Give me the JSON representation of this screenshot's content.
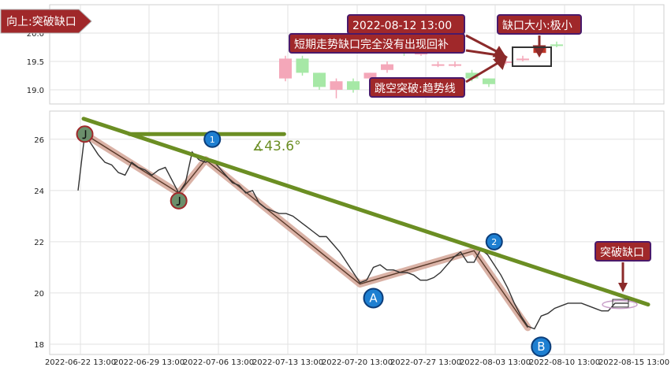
{
  "chart_data": {
    "type": "line",
    "x_tick_labels": [
      "2022-06-22 13:00",
      "2022-06-29 13:00",
      "2022-07-06 13:00",
      "2022-07-13 13:00",
      "2022-07-20 13:00",
      "2022-07-27 13:00",
      "2022-08-03 13:00",
      "2022-08-10 13:00",
      "2022-08-15 13:00"
    ],
    "top_panel": {
      "type": "candlestick",
      "y_ticks": [
        "19.0",
        "19.5",
        "20.0"
      ],
      "ylim": [
        18.75,
        20.5
      ],
      "candles": [
        {
          "i": 0,
          "o": 19.2,
          "c": 19.55,
          "h": 19.6,
          "l": 19.15,
          "color": "#f4a7b9"
        },
        {
          "i": 1,
          "o": 19.55,
          "c": 19.3,
          "h": 19.6,
          "l": 19.25,
          "color": "#a6e8a6"
        },
        {
          "i": 2,
          "o": 19.3,
          "c": 19.05,
          "h": 19.3,
          "l": 19.0,
          "color": "#a6e8a6"
        },
        {
          "i": 3,
          "o": 19.0,
          "c": 19.15,
          "h": 19.2,
          "l": 18.85,
          "color": "#f4a7b9"
        },
        {
          "i": 4,
          "o": 19.15,
          "c": 19.0,
          "h": 19.2,
          "l": 18.95,
          "color": "#a6e8a6"
        },
        {
          "i": 5,
          "o": 19.2,
          "c": 19.3,
          "h": 19.3,
          "l": 19.1,
          "color": "#f4a7b9"
        },
        {
          "i": 6,
          "o": 19.35,
          "c": 19.45,
          "h": 19.5,
          "l": 19.3,
          "color": "#f4a7b9"
        },
        {
          "i": 7,
          "o": 19.75,
          "c": 19.65,
          "h": 19.8,
          "l": 19.6,
          "color": "#a6e8a6"
        },
        {
          "i": 8,
          "o": 19.65,
          "c": 19.65,
          "h": 19.72,
          "l": 19.6,
          "color": "#f4a7b9"
        },
        {
          "i": 9,
          "o": 19.45,
          "c": 19.45,
          "h": 19.5,
          "l": 19.4,
          "color": "#f4a7b9"
        },
        {
          "i": 10,
          "o": 19.45,
          "c": 19.45,
          "h": 19.5,
          "l": 19.4,
          "color": "#f4a7b9"
        },
        {
          "i": 11,
          "o": 19.3,
          "c": 19.2,
          "h": 19.35,
          "l": 19.15,
          "color": "#a6e8a6"
        },
        {
          "i": 12,
          "o": 19.2,
          "c": 19.1,
          "h": 19.2,
          "l": 19.05,
          "color": "#a6e8a6"
        },
        {
          "i": 13,
          "o": 19.5,
          "c": 19.5,
          "h": 19.55,
          "l": 19.45,
          "color": "#f4a7b9"
        },
        {
          "i": 14,
          "o": 19.55,
          "c": 19.55,
          "h": 19.6,
          "l": 19.5,
          "color": "#f4a7b9"
        },
        {
          "i": 15,
          "o": 19.65,
          "c": 19.75,
          "h": 19.8,
          "l": 19.6,
          "color": "#c0392b"
        },
        {
          "i": 16,
          "o": 19.8,
          "c": 19.8,
          "h": 19.85,
          "l": 19.75,
          "color": "#a6e8a6"
        }
      ]
    },
    "bottom_panel": {
      "type": "line",
      "y_ticks": [
        "18",
        "20",
        "22",
        "24",
        "26"
      ],
      "ylim": [
        17.6,
        27.1
      ],
      "price_series": [
        24.0,
        26.2,
        25.8,
        25.4,
        25.1,
        25.0,
        24.7,
        24.6,
        25.1,
        24.9,
        24.8,
        24.6,
        24.8,
        24.9,
        24.4,
        23.9,
        24.3,
        25.5,
        25.2,
        25.1,
        25.2,
        24.9,
        24.6,
        24.3,
        24.2,
        23.9,
        24.0,
        23.5,
        23.3,
        23.2,
        23.1,
        23.1,
        23.0,
        22.8,
        22.6,
        22.4,
        22.2,
        22.2,
        21.9,
        21.6,
        21.2,
        20.8,
        20.4,
        20.5,
        21.0,
        21.1,
        20.9,
        20.9,
        20.8,
        20.8,
        20.7,
        20.5,
        20.5,
        20.6,
        20.8,
        21.1,
        21.4,
        21.6,
        21.2,
        21.2,
        21.7,
        21.5,
        21.1,
        20.7,
        20.2,
        19.6,
        19.1,
        18.7,
        18.6,
        19.1,
        19.2,
        19.4,
        19.5,
        19.6,
        19.6,
        19.6,
        19.5,
        19.4,
        19.3,
        19.3,
        19.6,
        19.6,
        19.6
      ],
      "zigzag": [
        {
          "i": 1,
          "y": 26.2
        },
        {
          "i": 15,
          "y": 23.9
        },
        {
          "i": 19,
          "y": 25.2
        },
        {
          "i": 42,
          "y": 20.35
        },
        {
          "i": 59,
          "y": 21.65
        },
        {
          "i": 67,
          "y": 18.65
        }
      ],
      "pivot_markers": [
        {
          "label": "",
          "i": 1,
          "y": 26.2,
          "style": "olive"
        },
        {
          "label": "",
          "i": 15,
          "y": 23.6,
          "style": "olive"
        },
        {
          "label": "1",
          "i": 20,
          "y": 26.0,
          "style": "blue"
        },
        {
          "label": "A",
          "i": 44,
          "y": 19.8,
          "style": "blue-big"
        },
        {
          "label": "2",
          "i": 62,
          "y": 22.0,
          "style": "blue"
        },
        {
          "label": "B",
          "i": 69,
          "y": 17.9,
          "style": "blue-big"
        }
      ],
      "trendline": {
        "i0": 0,
        "y0": 26.8,
        "i1": 84,
        "y1": 19.55
      },
      "horizontal_ref": {
        "i0": 8,
        "i1": 30,
        "y": 26.2
      },
      "angle_label": "∡43.6°"
    },
    "annotations": {
      "direction_label": "向上:突破缺口",
      "datetime_label": "2022-08-12 13:00",
      "gap_size_label": "缺口大小:极小",
      "no_fill_label": "短期走势缺口完全没有出现回补",
      "breakaway_label": "跳空突破:趋势线",
      "breakout_label": "突破缺口"
    },
    "colors": {
      "trend_olive": "#6b8e23",
      "zigzag_shadow": "#d4a596",
      "price_line": "#333333",
      "badge_red": "#a0282a",
      "badge_border": "#4a1a6b",
      "marker_blue": "#1e7fd1",
      "marker_olive": "#6b8f6b"
    }
  }
}
